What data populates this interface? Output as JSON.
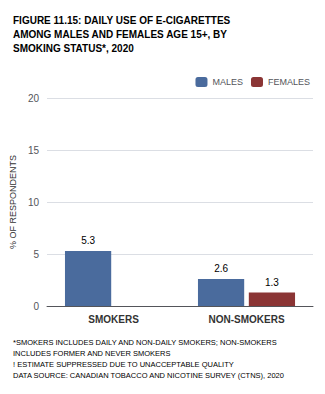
{
  "chart_data": {
    "type": "bar",
    "title": "FIGURE 11.15: DAILY USE OF E-CIGARETTES\nAMONG MALES AND FEMALES AGE 15+, BY\nSMOKING STATUS*, 2020",
    "categories": [
      "SMOKERS",
      "NON-SMOKERS"
    ],
    "series": [
      {
        "name": "MALES",
        "color": "#4a6b9d",
        "values": [
          5.3,
          2.6
        ]
      },
      {
        "name": "FEMALES",
        "color": "#8b3535",
        "values": [
          null,
          1.3
        ],
        "value_labels": [
          "!",
          "1.3"
        ]
      }
    ],
    "ylabel": "% OF RESPONDENTS",
    "ylim": [
      0,
      20
    ],
    "yticks": [
      0,
      5,
      10,
      15,
      20
    ],
    "grid": true,
    "legend": "upper right",
    "data_labels": true,
    "annotations": [
      "*SMOKERS INCLUDES DAILY AND NON-DAILY SMOKERS; NON-SMOKERS",
      "INCLUDES FORMER AND NEVER SMOKERS",
      "! ESTIMATE SUPPRESSED DUE TO UNACCEPTABLE QUALITY",
      "DATA SOURCE: CANADIAN TOBACCO AND NICOTINE SURVEY (CTNS), 2020"
    ]
  }
}
